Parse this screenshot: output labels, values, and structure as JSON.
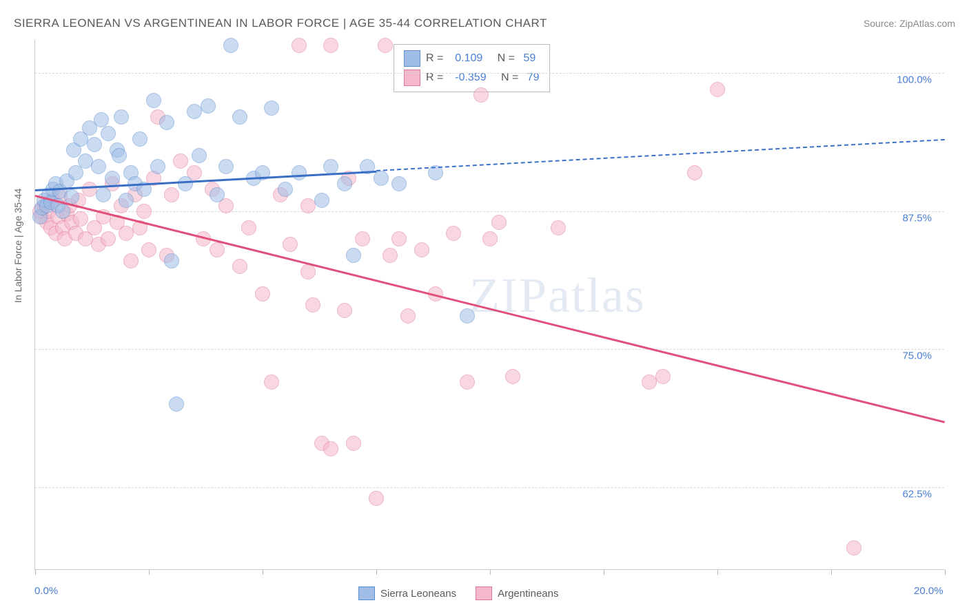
{
  "title": "SIERRA LEONEAN VS ARGENTINEAN IN LABOR FORCE | AGE 35-44 CORRELATION CHART",
  "source": "Source: ZipAtlas.com",
  "ylabel": "In Labor Force | Age 35-44",
  "watermark": "ZIPatlas",
  "chart": {
    "type": "scatter",
    "xlim": [
      0,
      20
    ],
    "ylim": [
      55,
      103
    ],
    "xticks": [
      0,
      2.5,
      5,
      7.5,
      10,
      12.5,
      15,
      17.5,
      20
    ],
    "xtick_labels_shown": {
      "0": "0.0%",
      "20": "20.0%"
    },
    "yticks": [
      62.5,
      75.0,
      87.5,
      100.0
    ],
    "ytick_labels": [
      "62.5%",
      "75.0%",
      "87.5%",
      "100.0%"
    ],
    "grid_color": "#d8d8d8",
    "axis_color": "#cccccc",
    "background_color": "#ffffff",
    "point_radius": 10,
    "point_opacity": 0.55,
    "series": [
      {
        "name": "Sierra Leoneans",
        "fill": "#9fbde6",
        "stroke": "#5e8fd0",
        "R": 0.109,
        "N": 59,
        "trend": {
          "y_at_x0": 89.5,
          "y_at_x20": 94.0,
          "solid_until_x": 7.5,
          "stroke": "#3a6fc7",
          "width": 3
        },
        "points": [
          [
            0.1,
            87.0
          ],
          [
            0.15,
            87.8
          ],
          [
            0.2,
            88.5
          ],
          [
            0.25,
            88.0
          ],
          [
            0.3,
            89.0
          ],
          [
            0.35,
            88.3
          ],
          [
            0.4,
            89.5
          ],
          [
            0.45,
            90.0
          ],
          [
            0.5,
            88.0
          ],
          [
            0.55,
            89.3
          ],
          [
            0.6,
            87.5
          ],
          [
            0.7,
            90.2
          ],
          [
            0.8,
            88.8
          ],
          [
            0.85,
            93.0
          ],
          [
            0.9,
            91.0
          ],
          [
            1.0,
            94.0
          ],
          [
            1.1,
            92.0
          ],
          [
            1.2,
            95.0
          ],
          [
            1.3,
            93.5
          ],
          [
            1.4,
            91.5
          ],
          [
            1.45,
            95.8
          ],
          [
            1.5,
            89.0
          ],
          [
            1.6,
            94.5
          ],
          [
            1.7,
            90.5
          ],
          [
            1.8,
            93.0
          ],
          [
            1.85,
            92.5
          ],
          [
            1.9,
            96.0
          ],
          [
            2.0,
            88.5
          ],
          [
            2.1,
            91.0
          ],
          [
            2.2,
            90.0
          ],
          [
            2.3,
            94.0
          ],
          [
            2.4,
            89.5
          ],
          [
            2.6,
            97.5
          ],
          [
            2.7,
            91.5
          ],
          [
            2.9,
            95.5
          ],
          [
            3.0,
            83.0
          ],
          [
            3.1,
            70.0
          ],
          [
            3.3,
            90.0
          ],
          [
            3.5,
            96.5
          ],
          [
            3.6,
            92.5
          ],
          [
            3.8,
            97.0
          ],
          [
            4.0,
            89.0
          ],
          [
            4.2,
            91.5
          ],
          [
            4.3,
            102.5
          ],
          [
            4.5,
            96.0
          ],
          [
            4.8,
            90.5
          ],
          [
            5.0,
            91.0
          ],
          [
            5.2,
            96.8
          ],
          [
            5.5,
            89.5
          ],
          [
            5.8,
            91.0
          ],
          [
            6.3,
            88.5
          ],
          [
            6.5,
            91.5
          ],
          [
            6.8,
            90.0
          ],
          [
            7.0,
            83.5
          ],
          [
            7.3,
            91.5
          ],
          [
            7.6,
            90.5
          ],
          [
            8.0,
            90.0
          ],
          [
            9.5,
            78.0
          ],
          [
            8.8,
            91.0
          ]
        ]
      },
      {
        "name": "Argentineans",
        "fill": "#f5b8ca",
        "stroke": "#e07998",
        "R": -0.359,
        "N": 79,
        "trend": {
          "y_at_x0": 89.0,
          "y_at_x20": 68.5,
          "solid_until_x": 20,
          "stroke": "#e14f7b",
          "width": 3
        },
        "points": [
          [
            0.1,
            87.5
          ],
          [
            0.15,
            87.0
          ],
          [
            0.2,
            88.0
          ],
          [
            0.25,
            86.5
          ],
          [
            0.3,
            87.5
          ],
          [
            0.35,
            86.0
          ],
          [
            0.4,
            88.5
          ],
          [
            0.45,
            85.5
          ],
          [
            0.5,
            87.0
          ],
          [
            0.55,
            88.8
          ],
          [
            0.6,
            86.0
          ],
          [
            0.65,
            85.0
          ],
          [
            0.7,
            87.2
          ],
          [
            0.75,
            88.0
          ],
          [
            0.8,
            86.5
          ],
          [
            0.9,
            85.5
          ],
          [
            0.95,
            88.5
          ],
          [
            1.0,
            86.8
          ],
          [
            1.1,
            85.0
          ],
          [
            1.2,
            89.5
          ],
          [
            1.3,
            86.0
          ],
          [
            1.4,
            84.5
          ],
          [
            1.5,
            87.0
          ],
          [
            1.6,
            85.0
          ],
          [
            1.7,
            90.0
          ],
          [
            1.8,
            86.5
          ],
          [
            1.9,
            88.0
          ],
          [
            2.0,
            85.5
          ],
          [
            2.1,
            83.0
          ],
          [
            2.2,
            89.0
          ],
          [
            2.3,
            86.0
          ],
          [
            2.4,
            87.5
          ],
          [
            2.5,
            84.0
          ],
          [
            2.6,
            90.5
          ],
          [
            2.7,
            96.0
          ],
          [
            2.9,
            83.5
          ],
          [
            3.0,
            89.0
          ],
          [
            3.2,
            92.0
          ],
          [
            3.5,
            91.0
          ],
          [
            3.7,
            85.0
          ],
          [
            3.9,
            89.5
          ],
          [
            4.0,
            84.0
          ],
          [
            4.2,
            88.0
          ],
          [
            4.5,
            82.5
          ],
          [
            4.7,
            86.0
          ],
          [
            5.0,
            80.0
          ],
          [
            5.2,
            72.0
          ],
          [
            5.4,
            89.0
          ],
          [
            5.6,
            84.5
          ],
          [
            5.8,
            102.5
          ],
          [
            6.0,
            88.0
          ],
          [
            6.1,
            79.0
          ],
          [
            6.3,
            66.5
          ],
          [
            6.5,
            102.5
          ],
          [
            6.5,
            66.0
          ],
          [
            6.8,
            78.5
          ],
          [
            6.9,
            90.5
          ],
          [
            7.0,
            66.5
          ],
          [
            7.2,
            85.0
          ],
          [
            7.5,
            61.5
          ],
          [
            7.7,
            102.5
          ],
          [
            7.8,
            83.5
          ],
          [
            8.0,
            85.0
          ],
          [
            8.2,
            78.0
          ],
          [
            8.5,
            84.0
          ],
          [
            8.8,
            80.0
          ],
          [
            9.2,
            85.5
          ],
          [
            9.5,
            72.0
          ],
          [
            9.8,
            98.0
          ],
          [
            10.0,
            85.0
          ],
          [
            10.2,
            86.5
          ],
          [
            10.5,
            72.5
          ],
          [
            11.5,
            86.0
          ],
          [
            13.5,
            72.0
          ],
          [
            13.8,
            72.5
          ],
          [
            14.5,
            91.0
          ],
          [
            15.0,
            98.5
          ],
          [
            18.0,
            57.0
          ],
          [
            6.0,
            82.0
          ]
        ]
      }
    ]
  },
  "legend_top": {
    "rows": [
      {
        "swatch_fill": "#9fbde6",
        "swatch_stroke": "#5e8fd0",
        "r_label": "R =",
        "r_val": "0.109",
        "n_label": "N =",
        "n_val": "59"
      },
      {
        "swatch_fill": "#f5b8ca",
        "swatch_stroke": "#e07998",
        "r_label": "R =",
        "r_val": "-0.359",
        "n_label": "N =",
        "n_val": "79"
      }
    ]
  },
  "legend_bottom": [
    {
      "swatch_fill": "#9fbde6",
      "swatch_stroke": "#5e8fd0",
      "label": "Sierra Leoneans"
    },
    {
      "swatch_fill": "#f5b8ca",
      "swatch_stroke": "#e07998",
      "label": "Argentineans"
    }
  ]
}
